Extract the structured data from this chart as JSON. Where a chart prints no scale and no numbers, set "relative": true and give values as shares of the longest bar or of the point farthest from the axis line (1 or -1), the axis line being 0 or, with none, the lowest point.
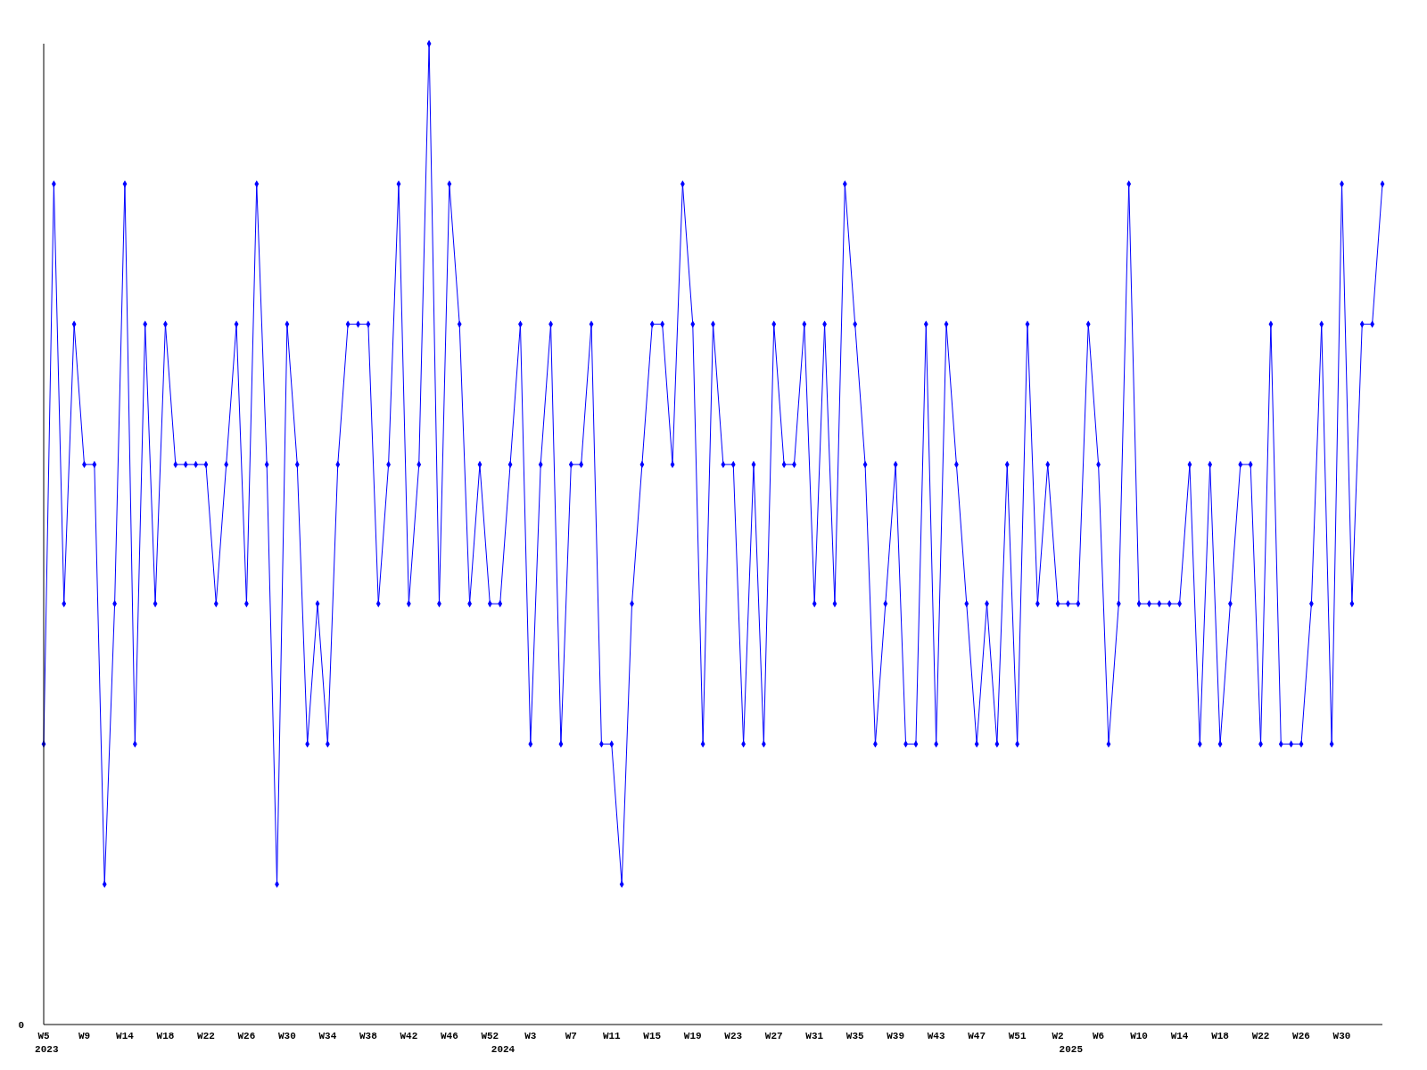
{
  "chart_data": {
    "type": "line",
    "relative": true,
    "annotations": [
      "0"
    ],
    "marker": "diamond",
    "line_style": "solid",
    "categories": [
      "W5\n2023",
      null,
      null,
      null,
      "W9",
      null,
      null,
      null,
      "W14",
      null,
      null,
      null,
      "W18",
      null,
      null,
      null,
      "W22",
      null,
      null,
      null,
      "W26",
      null,
      null,
      null,
      "W30",
      null,
      null,
      null,
      "W34",
      null,
      null,
      null,
      "W38",
      null,
      null,
      null,
      "W42",
      null,
      null,
      null,
      "W46",
      null,
      null,
      null,
      "W52",
      "\n2024",
      null,
      null,
      "W3",
      null,
      null,
      null,
      "W7",
      null,
      null,
      null,
      "W11",
      null,
      null,
      null,
      "W15",
      null,
      null,
      null,
      "W19",
      null,
      null,
      null,
      "W23",
      null,
      null,
      null,
      "W27",
      null,
      null,
      null,
      "W31",
      null,
      null,
      null,
      "W35",
      null,
      null,
      null,
      "W39",
      null,
      null,
      null,
      "W43",
      null,
      null,
      null,
      "W47",
      null,
      null,
      null,
      "W51",
      null,
      null,
      null,
      "W2",
      "\n2025",
      null,
      null,
      "W6",
      null,
      null,
      null,
      "W10",
      null,
      null,
      null,
      "W14",
      null,
      null,
      null,
      "W18",
      null,
      null,
      null,
      "W22",
      null,
      null,
      null,
      "W26",
      null,
      null,
      null,
      "W30",
      null,
      null,
      null,
      null
    ],
    "series": [
      {
        "color": "#0000ff",
        "values": [
          0.286,
          0.857,
          0.429,
          0.714,
          0.571,
          0.571,
          0.143,
          0.429,
          0.857,
          0.286,
          0.714,
          0.429,
          0.714,
          0.571,
          0.571,
          0.571,
          0.571,
          0.429,
          0.571,
          0.714,
          0.429,
          0.857,
          0.571,
          0.143,
          0.714,
          0.571,
          0.286,
          0.429,
          0.286,
          0.571,
          0.714,
          0.714,
          0.714,
          0.429,
          0.571,
          0.857,
          0.429,
          0.571,
          1,
          0.429,
          0.857,
          0.714,
          0.429,
          0.571,
          0.429,
          0.429,
          0.571,
          0.714,
          0.286,
          0.571,
          0.714,
          0.286,
          0.571,
          0.571,
          0.714,
          0.286,
          0.286,
          0.143,
          0.429,
          0.571,
          0.714,
          0.714,
          0.571,
          0.857,
          0.714,
          0.286,
          0.714,
          0.571,
          0.571,
          0.286,
          0.571,
          0.286,
          0.714,
          0.571,
          0.571,
          0.714,
          0.429,
          0.714,
          0.429,
          0.857,
          0.714,
          0.571,
          0.286,
          0.429,
          0.571,
          0.286,
          0.286,
          0.714,
          0.286,
          0.714,
          0.571,
          0.429,
          0.286,
          0.429,
          0.286,
          0.571,
          0.286,
          0.714,
          0.429,
          0.571,
          0.429,
          0.429,
          0.429,
          0.714,
          0.571,
          0.286,
          0.429,
          0.857,
          0.429,
          0.429,
          0.429,
          0.429,
          0.429,
          0.571,
          0.286,
          0.571,
          0.286,
          0.429,
          0.571,
          0.571,
          0.286,
          0.714,
          0.286,
          0.286,
          0.286,
          0.429,
          0.714,
          0.286,
          0.857,
          0.429,
          0.714,
          0.714,
          0.857
        ]
      }
    ]
  }
}
